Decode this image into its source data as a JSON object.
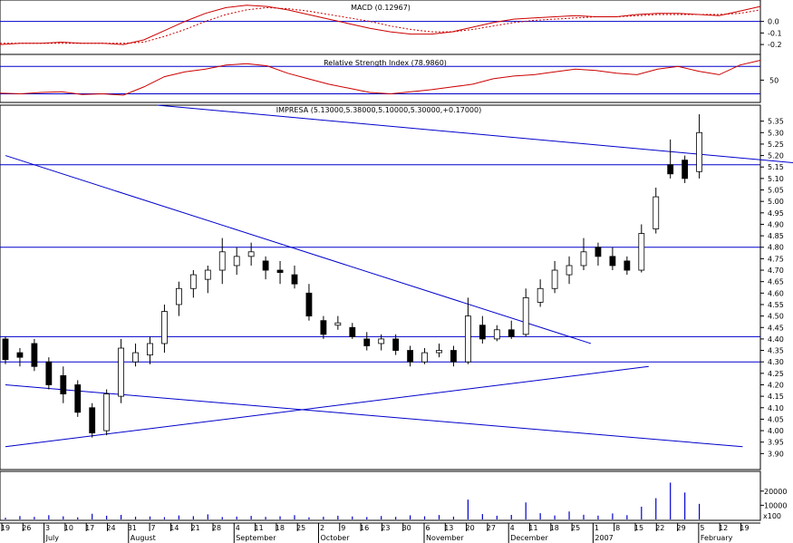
{
  "chart_data": [
    {
      "type": "line",
      "panel": "macd",
      "title": "MACD (0.12967)",
      "y_ticks": [
        "0.0",
        "-0.1",
        "-0.2"
      ],
      "ylim": [
        -0.27,
        0.17
      ],
      "reference_line": 0.0,
      "colors": {
        "macd": "#cc0000",
        "signal": "#cc0000",
        "reference": "#0000cc"
      },
      "series": [
        {
          "values": [
            -0.2,
            -0.19,
            -0.19,
            -0.18,
            -0.19,
            -0.19,
            -0.2,
            -0.16,
            -0.08,
            0.0,
            0.07,
            0.12,
            0.14,
            0.13,
            0.1,
            0.06,
            0.02,
            -0.02,
            -0.06,
            -0.09,
            -0.11,
            -0.11,
            -0.09,
            -0.05,
            -0.01,
            0.02,
            0.03,
            0.04,
            0.05,
            0.04,
            0.04,
            0.06,
            0.07,
            0.07,
            0.06,
            0.05,
            0.09,
            0.13
          ]
        },
        {
          "values": [
            -0.19,
            -0.19,
            -0.19,
            -0.19,
            -0.19,
            -0.19,
            -0.19,
            -0.18,
            -0.13,
            -0.07,
            0.0,
            0.06,
            0.1,
            0.12,
            0.11,
            0.09,
            0.06,
            0.03,
            0.0,
            -0.04,
            -0.07,
            -0.09,
            -0.09,
            -0.07,
            -0.04,
            -0.01,
            0.01,
            0.02,
            0.03,
            0.04,
            0.04,
            0.05,
            0.06,
            0.06,
            0.06,
            0.06,
            0.07,
            0.1
          ]
        }
      ]
    },
    {
      "type": "line",
      "panel": "rsi",
      "title": "Relative Strength Index (78.9860)",
      "y_ticks": [
        "50"
      ],
      "ylim": [
        20,
        85
      ],
      "reference_lines": [
        70,
        30
      ],
      "colors": {
        "rsi": "#cc0000",
        "reference": "#0000cc"
      },
      "series": [
        {
          "values": [
            31,
            30,
            32,
            33,
            29,
            30,
            28,
            40,
            55,
            62,
            66,
            72,
            74,
            71,
            60,
            52,
            44,
            38,
            32,
            30,
            33,
            36,
            40,
            44,
            52,
            56,
            58,
            62,
            66,
            64,
            60,
            58,
            66,
            70,
            63,
            58,
            72,
            79
          ]
        }
      ]
    },
    {
      "type": "candlestick",
      "panel": "price",
      "title": "IMPRESA (5.13000,5.38000,5.10000,5.30000,+0.17000)",
      "ylim": [
        3.85,
        5.4
      ],
      "y_ticks": [
        "5.35",
        "5.30",
        "5.25",
        "5.20",
        "5.15",
        "5.10",
        "5.05",
        "5.00",
        "4.95",
        "4.90",
        "4.85",
        "4.80",
        "4.75",
        "4.70",
        "4.65",
        "4.60",
        "4.55",
        "4.50",
        "4.45",
        "4.40",
        "4.35",
        "4.30",
        "4.25",
        "4.20",
        "4.15",
        "4.10",
        "4.05",
        "4.00",
        "3.95",
        "3.90"
      ],
      "colors": {
        "up": "#ffffff",
        "down": "#000000",
        "outline": "#000000",
        "trendline": "#0000cc"
      },
      "horizontal_lines": [
        5.16,
        4.8,
        4.41,
        4.3
      ],
      "trendlines": [
        {
          "from": {
            "x": 0,
            "y": 5.2
          },
          "to": {
            "x": 40.5,
            "y": 4.38
          }
        },
        {
          "from": {
            "x": 0,
            "y": 3.93
          },
          "to": {
            "x": 44.5,
            "y": 4.28
          }
        },
        {
          "from": {
            "x": 0,
            "y": 4.2
          },
          "to": {
            "x": 51.0,
            "y": 3.93
          }
        },
        {
          "from": {
            "x": 10.5,
            "y": 5.42
          },
          "to": {
            "x": 56.0,
            "y": 5.16
          }
        }
      ],
      "candles": [
        {
          "o": 4.4,
          "h": 4.41,
          "l": 4.29,
          "c": 4.31
        },
        {
          "o": 4.34,
          "h": 4.36,
          "l": 4.28,
          "c": 4.32
        },
        {
          "o": 4.38,
          "h": 4.4,
          "l": 4.26,
          "c": 4.28
        },
        {
          "o": 4.3,
          "h": 4.32,
          "l": 4.18,
          "c": 4.2
        },
        {
          "o": 4.24,
          "h": 4.28,
          "l": 4.12,
          "c": 4.16
        },
        {
          "o": 4.2,
          "h": 4.22,
          "l": 4.06,
          "c": 4.08
        },
        {
          "o": 4.1,
          "h": 4.12,
          "l": 3.97,
          "c": 3.99
        },
        {
          "o": 4.0,
          "h": 4.18,
          "l": 3.98,
          "c": 4.16
        },
        {
          "o": 4.15,
          "h": 4.4,
          "l": 4.12,
          "c": 4.36
        },
        {
          "o": 4.3,
          "h": 4.38,
          "l": 4.28,
          "c": 4.34
        },
        {
          "o": 4.33,
          "h": 4.41,
          "l": 4.29,
          "c": 4.38
        },
        {
          "o": 4.38,
          "h": 4.55,
          "l": 4.34,
          "c": 4.52
        },
        {
          "o": 4.55,
          "h": 4.65,
          "l": 4.5,
          "c": 4.62
        },
        {
          "o": 4.62,
          "h": 4.7,
          "l": 4.58,
          "c": 4.68
        },
        {
          "o": 4.66,
          "h": 4.72,
          "l": 4.6,
          "c": 4.7
        },
        {
          "o": 4.7,
          "h": 4.84,
          "l": 4.64,
          "c": 4.78
        },
        {
          "o": 4.72,
          "h": 4.8,
          "l": 4.68,
          "c": 4.76
        },
        {
          "o": 4.76,
          "h": 4.82,
          "l": 4.72,
          "c": 4.78
        },
        {
          "o": 4.74,
          "h": 4.76,
          "l": 4.66,
          "c": 4.7
        },
        {
          "o": 4.7,
          "h": 4.74,
          "l": 4.64,
          "c": 4.69
        },
        {
          "o": 4.68,
          "h": 4.72,
          "l": 4.62,
          "c": 4.64
        },
        {
          "o": 4.6,
          "h": 4.64,
          "l": 4.48,
          "c": 4.5
        },
        {
          "o": 4.48,
          "h": 4.5,
          "l": 4.4,
          "c": 4.42
        },
        {
          "o": 4.46,
          "h": 4.5,
          "l": 4.44,
          "c": 4.47
        },
        {
          "o": 4.45,
          "h": 4.47,
          "l": 4.4,
          "c": 4.41
        },
        {
          "o": 4.4,
          "h": 4.43,
          "l": 4.35,
          "c": 4.37
        },
        {
          "o": 4.38,
          "h": 4.42,
          "l": 4.35,
          "c": 4.4
        },
        {
          "o": 4.4,
          "h": 4.42,
          "l": 4.33,
          "c": 4.35
        },
        {
          "o": 4.35,
          "h": 4.37,
          "l": 4.28,
          "c": 4.3
        },
        {
          "o": 4.3,
          "h": 4.36,
          "l": 4.29,
          "c": 4.34
        },
        {
          "o": 4.34,
          "h": 4.38,
          "l": 4.32,
          "c": 4.35
        },
        {
          "o": 4.35,
          "h": 4.37,
          "l": 4.28,
          "c": 4.3
        },
        {
          "o": 4.3,
          "h": 4.58,
          "l": 4.29,
          "c": 4.5
        },
        {
          "o": 4.46,
          "h": 4.5,
          "l": 4.38,
          "c": 4.4
        },
        {
          "o": 4.4,
          "h": 4.46,
          "l": 4.39,
          "c": 4.44
        },
        {
          "o": 4.44,
          "h": 4.48,
          "l": 4.4,
          "c": 4.41
        },
        {
          "o": 4.42,
          "h": 4.62,
          "l": 4.41,
          "c": 4.58
        },
        {
          "o": 4.56,
          "h": 4.66,
          "l": 4.54,
          "c": 4.62
        },
        {
          "o": 4.62,
          "h": 4.74,
          "l": 4.6,
          "c": 4.7
        },
        {
          "o": 4.68,
          "h": 4.76,
          "l": 4.64,
          "c": 4.72
        },
        {
          "o": 4.72,
          "h": 4.84,
          "l": 4.7,
          "c": 4.78
        },
        {
          "o": 4.8,
          "h": 4.82,
          "l": 4.72,
          "c": 4.76
        },
        {
          "o": 4.76,
          "h": 4.8,
          "l": 4.7,
          "c": 4.72
        },
        {
          "o": 4.74,
          "h": 4.76,
          "l": 4.68,
          "c": 4.7
        },
        {
          "o": 4.7,
          "h": 4.9,
          "l": 4.69,
          "c": 4.86
        },
        {
          "o": 4.88,
          "h": 5.06,
          "l": 4.86,
          "c": 5.02
        },
        {
          "o": 5.16,
          "h": 5.27,
          "l": 5.1,
          "c": 5.12
        },
        {
          "o": 5.18,
          "h": 5.2,
          "l": 5.08,
          "c": 5.1
        },
        {
          "o": 5.13,
          "h": 5.38,
          "l": 5.1,
          "c": 5.3
        }
      ]
    },
    {
      "type": "bar",
      "panel": "volume",
      "y_ticks": [
        "20000",
        "10000"
      ],
      "y_unit_label": "x100",
      "ylim": [
        0,
        32000
      ],
      "color": "#0000cc",
      "values": [
        1200,
        2400,
        1800,
        3000,
        2200,
        1500,
        4000,
        2600,
        3200,
        1900,
        2100,
        1600,
        2800,
        2300,
        3600,
        1700,
        2000,
        2500,
        1800,
        2200,
        3000,
        1500,
        1900,
        2600,
        2100,
        1700,
        2400,
        1800,
        2900,
        2200,
        3100,
        2000,
        14000,
        3800,
        2600,
        3200,
        12000,
        4400,
        2800,
        5600,
        3300,
        2700,
        4200,
        3000,
        9000,
        15000,
        26000,
        19000,
        11000
      ],
      "x_tick_labels": [
        "19",
        "26",
        "3",
        "10",
        "17",
        "24",
        "31",
        "7",
        "14",
        "21",
        "28",
        "4",
        "11",
        "18",
        "25",
        "2",
        "9",
        "16",
        "23",
        "30",
        "6",
        "13",
        "20",
        "27",
        "4",
        "11",
        "18",
        "25",
        "1",
        "8",
        "15",
        "22",
        "29",
        "5",
        "12",
        "19"
      ],
      "month_labels": [
        "July",
        "August",
        "September",
        "October",
        "November",
        "December",
        "2007",
        "February"
      ]
    }
  ]
}
